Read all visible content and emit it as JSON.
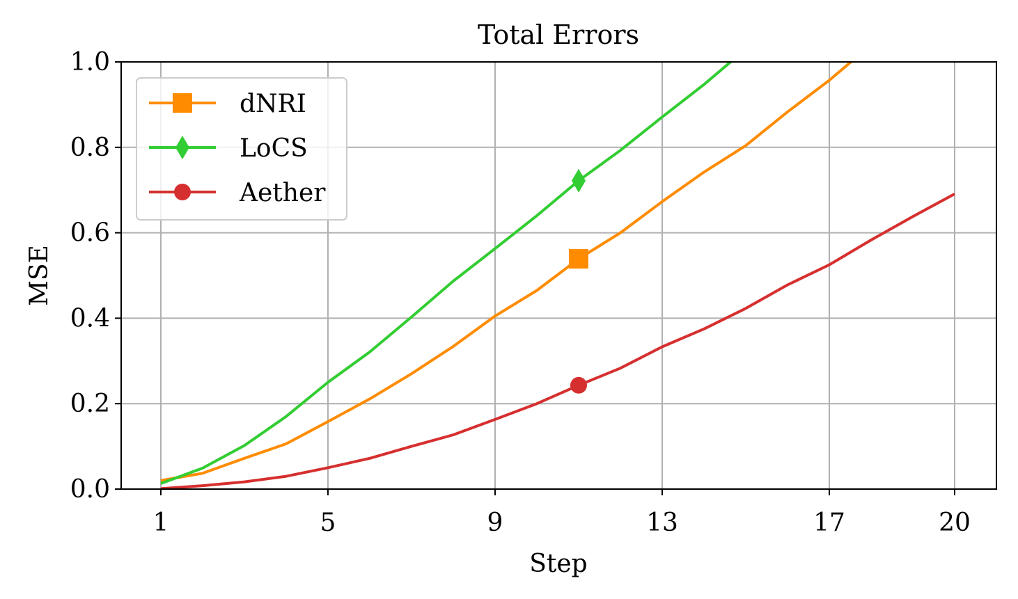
{
  "chart_data": {
    "type": "line",
    "title": "Total Errors",
    "xlabel": "Step",
    "ylabel": "MSE",
    "xlim": [
      0.05,
      21.0
    ],
    "ylim": [
      0.0,
      1.0
    ],
    "xticks": [
      1,
      5,
      9,
      13,
      17,
      20
    ],
    "xtick_labels": [
      "1",
      "5",
      "9",
      "13",
      "17",
      "20"
    ],
    "yticks": [
      0.0,
      0.2,
      0.4,
      0.6,
      0.8,
      1.0
    ],
    "ytick_labels": [
      "0.0",
      "0.2",
      "0.4",
      "0.6",
      "0.8",
      "1.0"
    ],
    "grid": true,
    "legend_position": "upper-left",
    "marker_x": 11,
    "series": [
      {
        "name": "dNRI",
        "color": "#ff8c00",
        "marker": "square",
        "x": [
          1,
          2,
          3,
          4,
          5,
          6,
          7,
          8,
          9,
          10,
          11,
          12,
          13,
          14,
          15,
          16,
          17,
          18
        ],
        "y": [
          0.02,
          0.037,
          0.072,
          0.106,
          0.158,
          0.211,
          0.27,
          0.334,
          0.405,
          0.465,
          0.539,
          0.6,
          0.673,
          0.742,
          0.804,
          0.883,
          0.957,
          1.04
        ]
      },
      {
        "name": "LoCS",
        "color": "#32cd32",
        "marker": "diamond",
        "x": [
          1,
          2,
          3,
          4,
          5,
          6,
          7,
          8,
          9,
          10,
          11,
          12,
          13,
          14,
          15
        ],
        "y": [
          0.013,
          0.049,
          0.102,
          0.17,
          0.25,
          0.321,
          0.403,
          0.487,
          0.563,
          0.64,
          0.722,
          0.793,
          0.871,
          0.947,
          1.03
        ]
      },
      {
        "name": "Aether",
        "color": "#d62f2f",
        "marker": "circle",
        "x": [
          1,
          2,
          3,
          4,
          5,
          6,
          7,
          8,
          9,
          10,
          11,
          12,
          13,
          14,
          15,
          16,
          17,
          18,
          19,
          20
        ],
        "y": [
          0.001,
          0.008,
          0.017,
          0.03,
          0.05,
          0.072,
          0.1,
          0.127,
          0.163,
          0.2,
          0.243,
          0.283,
          0.333,
          0.375,
          0.423,
          0.478,
          0.525,
          0.583,
          0.638,
          0.691
        ]
      }
    ]
  }
}
